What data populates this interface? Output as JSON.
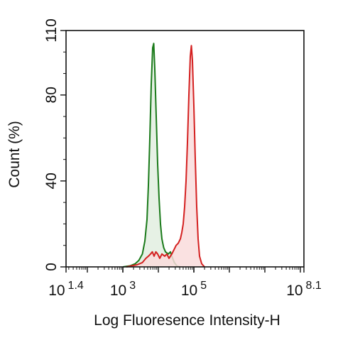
{
  "chart_data": {
    "type": "area",
    "xlabel": "Log Fluoresence Intensity-H",
    "ylabel": "Count  (%)",
    "x_scale": "log10",
    "xlim_log10": [
      1.4,
      8.1
    ],
    "ylim": [
      0,
      110
    ],
    "y_ticks": [
      {
        "value": 0,
        "label": "0"
      },
      {
        "value": 40,
        "label": "40"
      },
      {
        "value": 80,
        "label": "80"
      },
      {
        "value": 110,
        "label": "110"
      }
    ],
    "x_ticks": [
      {
        "exp": 1.4,
        "base": "10",
        "sup": "1.4"
      },
      {
        "exp": 3,
        "base": "10",
        "sup": "3"
      },
      {
        "exp": 5,
        "base": "10",
        "sup": "5"
      },
      {
        "exp": 8.1,
        "base": "10",
        "sup": "8.1"
      }
    ],
    "series": [
      {
        "color": "#1a7a1a",
        "fill": "#e2efe0",
        "points_log10": [
          [
            3.0,
            0
          ],
          [
            3.2,
            0.5
          ],
          [
            3.35,
            1.5
          ],
          [
            3.45,
            3
          ],
          [
            3.55,
            6
          ],
          [
            3.62,
            12
          ],
          [
            3.68,
            22
          ],
          [
            3.72,
            38
          ],
          [
            3.76,
            60
          ],
          [
            3.8,
            85
          ],
          [
            3.84,
            102
          ],
          [
            3.87,
            104
          ],
          [
            3.9,
            92
          ],
          [
            3.94,
            70
          ],
          [
            3.98,
            48
          ],
          [
            4.02,
            32
          ],
          [
            4.06,
            20
          ],
          [
            4.1,
            13
          ],
          [
            4.15,
            9
          ],
          [
            4.2,
            7
          ],
          [
            4.28,
            6
          ],
          [
            4.34,
            7
          ],
          [
            4.38,
            5
          ],
          [
            4.45,
            2
          ],
          [
            4.52,
            0.5
          ],
          [
            4.6,
            0
          ]
        ]
      },
      {
        "color": "#d42020",
        "fill": "#f9dcdc",
        "points_log10": [
          [
            3.1,
            0
          ],
          [
            3.4,
            1
          ],
          [
            3.55,
            2
          ],
          [
            3.65,
            4
          ],
          [
            3.72,
            5
          ],
          [
            3.78,
            6
          ],
          [
            3.83,
            7
          ],
          [
            3.88,
            5
          ],
          [
            3.93,
            7
          ],
          [
            3.98,
            6
          ],
          [
            4.04,
            4
          ],
          [
            4.1,
            6
          ],
          [
            4.18,
            5
          ],
          [
            4.24,
            6
          ],
          [
            4.3,
            4
          ],
          [
            4.38,
            6
          ],
          [
            4.44,
            8
          ],
          [
            4.5,
            10
          ],
          [
            4.56,
            11
          ],
          [
            4.62,
            13
          ],
          [
            4.66,
            16
          ],
          [
            4.7,
            20
          ],
          [
            4.74,
            28
          ],
          [
            4.78,
            40
          ],
          [
            4.82,
            58
          ],
          [
            4.86,
            80
          ],
          [
            4.9,
            98
          ],
          [
            4.93,
            103
          ],
          [
            4.96,
            96
          ],
          [
            5.0,
            75
          ],
          [
            5.04,
            50
          ],
          [
            5.08,
            28
          ],
          [
            5.12,
            13
          ],
          [
            5.16,
            5
          ],
          [
            5.22,
            1.5
          ],
          [
            5.3,
            0
          ]
        ]
      }
    ]
  }
}
